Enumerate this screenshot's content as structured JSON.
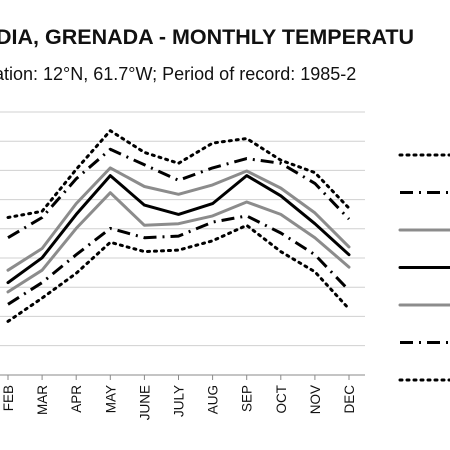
{
  "chart_data": {
    "type": "line",
    "title": "DIA, GRENADA - MONTHLY TEMPERATU",
    "subtitle": "ation: 12°N, 61.7°W; Period of record: 1985-2",
    "categories": [
      "FEB",
      "MAR",
      "APR",
      "MAY",
      "JUNE",
      "JULY",
      "AUG",
      "SEP",
      "OCT",
      "NOV",
      "DEC"
    ],
    "grid": true,
    "legend_position": "right",
    "series": [
      {
        "style": "dotted-black",
        "color": "#000000",
        "values": [
          5.0,
          5.4,
          8.1,
          10.6,
          9.2,
          8.5,
          9.8,
          10.1,
          8.7,
          7.9,
          5.6
        ]
      },
      {
        "style": "dashdot-black",
        "color": "#000000",
        "values": [
          3.7,
          5.0,
          7.5,
          9.4,
          8.4,
          7.4,
          8.2,
          8.8,
          8.5,
          7.2,
          4.9
        ]
      },
      {
        "style": "solid-gray",
        "color": "#8c8c8c",
        "values": [
          1.6,
          3.0,
          5.9,
          8.2,
          7.0,
          6.5,
          7.1,
          8.0,
          6.9,
          5.3,
          3.1
        ]
      },
      {
        "style": "solid-black",
        "color": "#000000",
        "values": [
          0.8,
          2.4,
          5.2,
          7.7,
          5.8,
          5.2,
          5.9,
          7.7,
          6.4,
          4.6,
          2.6
        ]
      },
      {
        "style": "solid-gray",
        "color": "#8c8c8c",
        "values": [
          0.2,
          1.6,
          4.3,
          6.6,
          4.5,
          4.6,
          5.1,
          6.0,
          5.2,
          3.7,
          1.8
        ]
      },
      {
        "style": "dashdot-black",
        "color": "#000000",
        "values": [
          -0.6,
          0.8,
          2.6,
          4.3,
          3.7,
          3.8,
          4.7,
          5.1,
          4.0,
          2.6,
          0.3
        ]
      },
      {
        "style": "dotted-black",
        "color": "#000000",
        "values": [
          -1.7,
          -0.2,
          1.4,
          3.4,
          2.8,
          2.9,
          3.5,
          4.5,
          2.8,
          1.5,
          -0.9
        ]
      }
    ]
  }
}
